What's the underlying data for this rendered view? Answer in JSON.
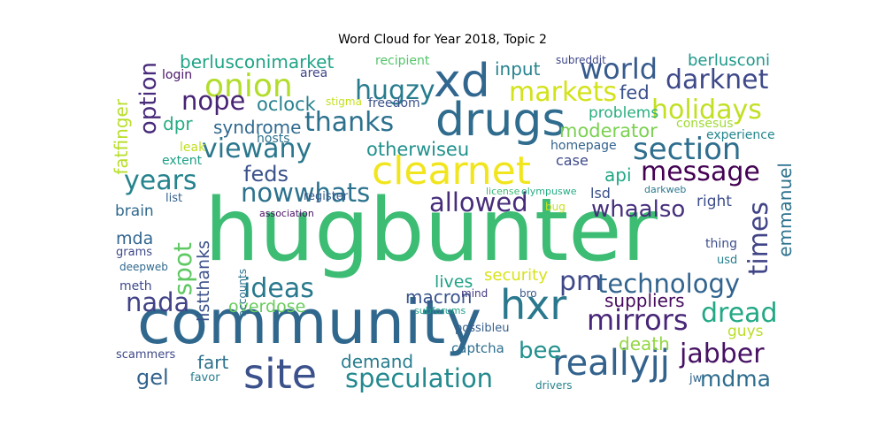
{
  "title": "Word Cloud for Year 2018, Topic 2",
  "colors": {
    "dark_purple": "#440154",
    "indigo": "#482878",
    "blue_slate": "#3e4989",
    "steel": "#31688e",
    "teal": "#26828e",
    "sea": "#1f9e89",
    "green": "#35b779",
    "lime": "#6ece58",
    "yellowgreen": "#b5de2b",
    "yellow": "#fde725"
  },
  "words": [
    {
      "t": "hugbunter",
      "c": "#3dbc74"
    },
    {
      "t": "community",
      "c": "#30678d"
    },
    {
      "t": "drugs",
      "c": "#2f6c8e"
    },
    {
      "t": "clearnet",
      "c": "#f1e51d"
    },
    {
      "t": "xd",
      "c": "#31668e"
    },
    {
      "t": "site",
      "c": "#3b518b"
    },
    {
      "t": "hxr",
      "c": "#2a788e"
    },
    {
      "t": "section",
      "c": "#2e6e8e"
    },
    {
      "t": "onion",
      "c": "#b2dd2c"
    },
    {
      "t": "world",
      "c": "#375b8d"
    },
    {
      "t": "darknet",
      "c": "#3e4989"
    },
    {
      "t": "hugzy",
      "c": "#287c8e"
    },
    {
      "t": "markets",
      "c": "#d2e21b"
    },
    {
      "t": "holidays",
      "c": "#c2df23"
    },
    {
      "t": "nope",
      "c": "#482475"
    },
    {
      "t": "thanks",
      "c": "#2c718e"
    },
    {
      "t": "message",
      "c": "#440154"
    },
    {
      "t": "viewany",
      "c": "#2a778e"
    },
    {
      "t": "years",
      "c": "#25838e"
    },
    {
      "t": "feds",
      "c": "#3b528b"
    },
    {
      "t": "nowwhats",
      "c": "#2c728e"
    },
    {
      "t": "allowed",
      "c": "#472d7b"
    },
    {
      "t": "whaalso",
      "c": "#472f7d"
    },
    {
      "t": "times",
      "c": "#414487"
    },
    {
      "t": "reallyjj",
      "c": "#33638d"
    },
    {
      "t": "mirrors",
      "c": "#482677"
    },
    {
      "t": "technology",
      "c": "#32648e"
    },
    {
      "t": "pm",
      "c": "#3f4788"
    },
    {
      "t": "ideas",
      "c": "#29798e"
    },
    {
      "t": "nada",
      "c": "#414287"
    },
    {
      "t": "dread",
      "c": "#22a884"
    },
    {
      "t": "jabber",
      "c": "#471164"
    },
    {
      "t": "speculation",
      "c": "#23898e"
    },
    {
      "t": "bee",
      "c": "#21908d"
    },
    {
      "t": "gel",
      "c": "#33638d"
    },
    {
      "t": "mdma",
      "c": "#2e6d8e"
    },
    {
      "t": "spot",
      "c": "#5ec962"
    },
    {
      "t": "option",
      "c": "#472a7a"
    },
    {
      "t": "otherwiseu",
      "c": "#21918c"
    },
    {
      "t": "moderator",
      "c": "#7ad151"
    },
    {
      "t": "berlusconimarket",
      "c": "#20a486"
    },
    {
      "t": "berlusconi",
      "c": "#1f988b"
    },
    {
      "t": "input",
      "c": "#26828e"
    },
    {
      "t": "oclock",
      "c": "#26818e"
    },
    {
      "t": "syndrome",
      "c": "#30698e"
    },
    {
      "t": "fed",
      "c": "#3b528b"
    },
    {
      "t": "problems",
      "c": "#29af7f"
    },
    {
      "t": "dpr",
      "c": "#25ab82"
    },
    {
      "t": "api",
      "c": "#22a785"
    },
    {
      "t": "emmanuel",
      "c": "#2c718e"
    },
    {
      "t": "fatfinger",
      "c": "#b8de29"
    },
    {
      "t": "lives",
      "c": "#20a386"
    },
    {
      "t": "security",
      "c": "#d8e219"
    },
    {
      "t": "macron",
      "c": "#3a548c"
    },
    {
      "t": "suppliers",
      "c": "#460b5e"
    },
    {
      "t": "overdose",
      "c": "#67cc5c"
    },
    {
      "t": "listthanks",
      "c": "#3b518b"
    },
    {
      "t": "death",
      "c": "#93d741"
    },
    {
      "t": "guys",
      "c": "#bade28"
    },
    {
      "t": "demand",
      "c": "#287d8e"
    },
    {
      "t": "fart",
      "c": "#2d718e"
    },
    {
      "t": "mda",
      "c": "#32658e"
    },
    {
      "t": "lsd",
      "c": "#3b528b"
    },
    {
      "t": "right",
      "c": "#3d4e8a"
    },
    {
      "t": "case",
      "c": "#3e4989"
    },
    {
      "t": "brain",
      "c": "#30698e"
    },
    {
      "t": "captcha",
      "c": "#2e6e8e"
    },
    {
      "t": "recipient",
      "c": "#52c569"
    },
    {
      "t": "area",
      "c": "#404588"
    },
    {
      "t": "login",
      "c": "#481467"
    },
    {
      "t": "freedom",
      "c": "#3b528b"
    },
    {
      "t": "stigma",
      "c": "#c5e021"
    },
    {
      "t": "subreddit",
      "c": "#3f4889"
    },
    {
      "t": "consesus",
      "c": "#a2da37"
    },
    {
      "t": "experience",
      "c": "#24868e"
    },
    {
      "t": "homepage",
      "c": "#33638d"
    },
    {
      "t": "hosts",
      "c": "#2c728e"
    },
    {
      "t": "leak",
      "c": "#c0df25"
    },
    {
      "t": "extent",
      "c": "#1fa088"
    },
    {
      "t": "list",
      "c": "#34618d"
    },
    {
      "t": "register",
      "c": "#375a8c"
    },
    {
      "t": "association",
      "c": "#471365"
    },
    {
      "t": "license",
      "c": "#3aba76"
    },
    {
      "t": "olympuswe",
      "c": "#25ac82"
    },
    {
      "t": "darkweb",
      "c": "#2a788e"
    },
    {
      "t": "bug",
      "c": "#c8e020"
    },
    {
      "t": "grams",
      "c": "#3e4989"
    },
    {
      "t": "deepweb",
      "c": "#30698e"
    },
    {
      "t": "accounts",
      "c": "#2c718e"
    },
    {
      "t": "meth",
      "c": "#3e4a89"
    },
    {
      "t": "mind",
      "c": "#443a83"
    },
    {
      "t": "bro",
      "c": "#38598c"
    },
    {
      "t": "subforums",
      "c": "#1f9e89"
    },
    {
      "t": "possibleu",
      "c": "#355f8d"
    },
    {
      "t": "thing",
      "c": "#3d4e8a"
    },
    {
      "t": "usd",
      "c": "#27808e"
    },
    {
      "t": "scammers",
      "c": "#3e4989"
    },
    {
      "t": "favor",
      "c": "#287d8e"
    },
    {
      "t": "drivers",
      "c": "#26828e"
    },
    {
      "t": "jw",
      "c": "#31668e"
    }
  ]
}
